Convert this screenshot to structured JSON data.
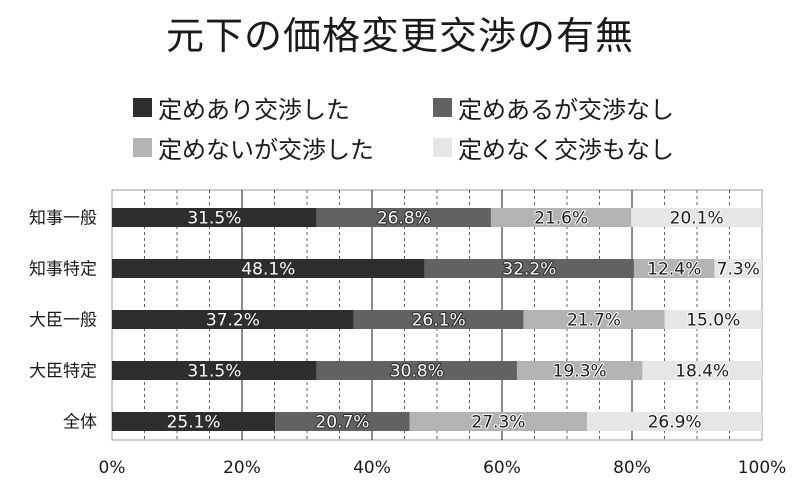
{
  "chart_data": {
    "type": "bar",
    "orientation": "horizontal",
    "stacked": true,
    "title": "元下の価格変更交渉の有無",
    "categories": [
      "知事一般",
      "知事特定",
      "大臣一般",
      "大臣特定",
      "全体"
    ],
    "series": [
      {
        "name": "定めあり交渉した",
        "color": "#2e2e2e",
        "label_color": "#ffffff",
        "values": [
          31.5,
          48.1,
          37.2,
          31.5,
          25.1
        ]
      },
      {
        "name": "定めあるが交渉なし",
        "color": "#626262",
        "label_color": "#ffffff",
        "values": [
          26.8,
          32.2,
          26.1,
          30.8,
          20.7
        ]
      },
      {
        "name": "定めないが交渉した",
        "color": "#b3b3b3",
        "label_color": "#1a1a1a",
        "values": [
          21.6,
          12.4,
          21.7,
          19.3,
          27.3
        ]
      },
      {
        "name": "定めなく交渉もなし",
        "color": "#e6e6e6",
        "label_color": "#1a1a1a",
        "values": [
          20.1,
          7.3,
          15.0,
          18.4,
          26.9
        ]
      }
    ],
    "value_labels": [
      [
        "31.5%",
        "48.1%",
        "37.2%",
        "31.5%",
        "25.1%"
      ],
      [
        "26.8%",
        "32.2%",
        "26.1%",
        "30.8%",
        "20.7%"
      ],
      [
        "21.6%",
        "12.4%",
        "21.7%",
        "19.3%",
        "27.3%"
      ],
      [
        "20.1%",
        "7.3%",
        "15.0%",
        "18.4%",
        "26.9%"
      ]
    ],
    "xlim": [
      0,
      100
    ],
    "xticks": [
      "0%",
      "20%",
      "40%",
      "60%",
      "80%",
      "100%"
    ],
    "grid": true,
    "legend_position": "top"
  }
}
